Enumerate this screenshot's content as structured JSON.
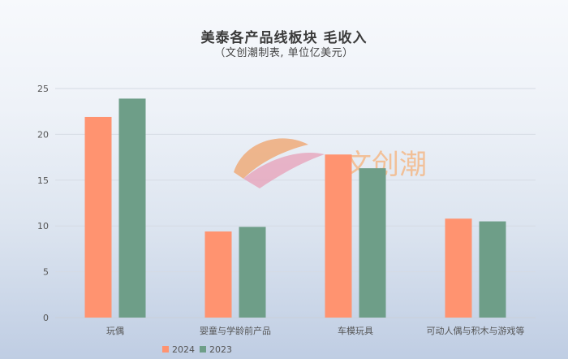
{
  "title": "美泰各产品线板块 毛收入",
  "subtitle": "（文创潮制表, 单位亿美元）",
  "watermark": "文创潮",
  "colors": {
    "2024": "#ff9370",
    "2023": "#6e9e88",
    "grid": "#d5dbe4",
    "axis_text": "#555555"
  },
  "chart_data": {
    "type": "bar",
    "categories": [
      "玩偶",
      "婴童与学龄前产品",
      "车模玩具",
      "可动人偶与积木与游戏等"
    ],
    "series": [
      {
        "name": "2024",
        "values": [
          21.9,
          9.4,
          17.8,
          10.8
        ]
      },
      {
        "name": "2023",
        "values": [
          23.9,
          9.9,
          16.3,
          10.5
        ]
      }
    ],
    "ylim": [
      0,
      25
    ],
    "yticks": [
      "0",
      "5",
      "10",
      "15",
      "20",
      "25"
    ],
    "grid": true,
    "legend_position": "bottom"
  }
}
